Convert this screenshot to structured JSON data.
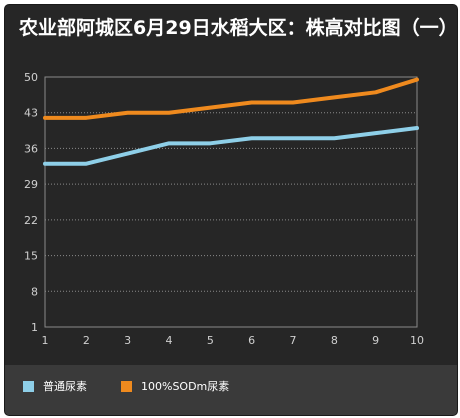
{
  "chart_data": {
    "type": "line",
    "title": "农业部阿城区6月29日水稻大区：株高对比图（一）",
    "xlabel": "",
    "ylabel": "",
    "x": [
      1,
      2,
      3,
      4,
      5,
      6,
      7,
      8,
      9,
      10
    ],
    "ylim": [
      1,
      50
    ],
    "yticks": [
      1,
      8,
      15,
      22,
      29,
      36,
      43,
      50
    ],
    "grid": true,
    "legend_position": "bottom-left",
    "series": [
      {
        "name": "普通尿素",
        "color": "#8ecfe8",
        "values": [
          33,
          33,
          35,
          37,
          37,
          38,
          38,
          38,
          39,
          40
        ]
      },
      {
        "name": "100%SODm尿素",
        "color": "#ef8a1e",
        "values": [
          42,
          42,
          43,
          43,
          44,
          45,
          45,
          46,
          47,
          49.5
        ]
      }
    ]
  }
}
